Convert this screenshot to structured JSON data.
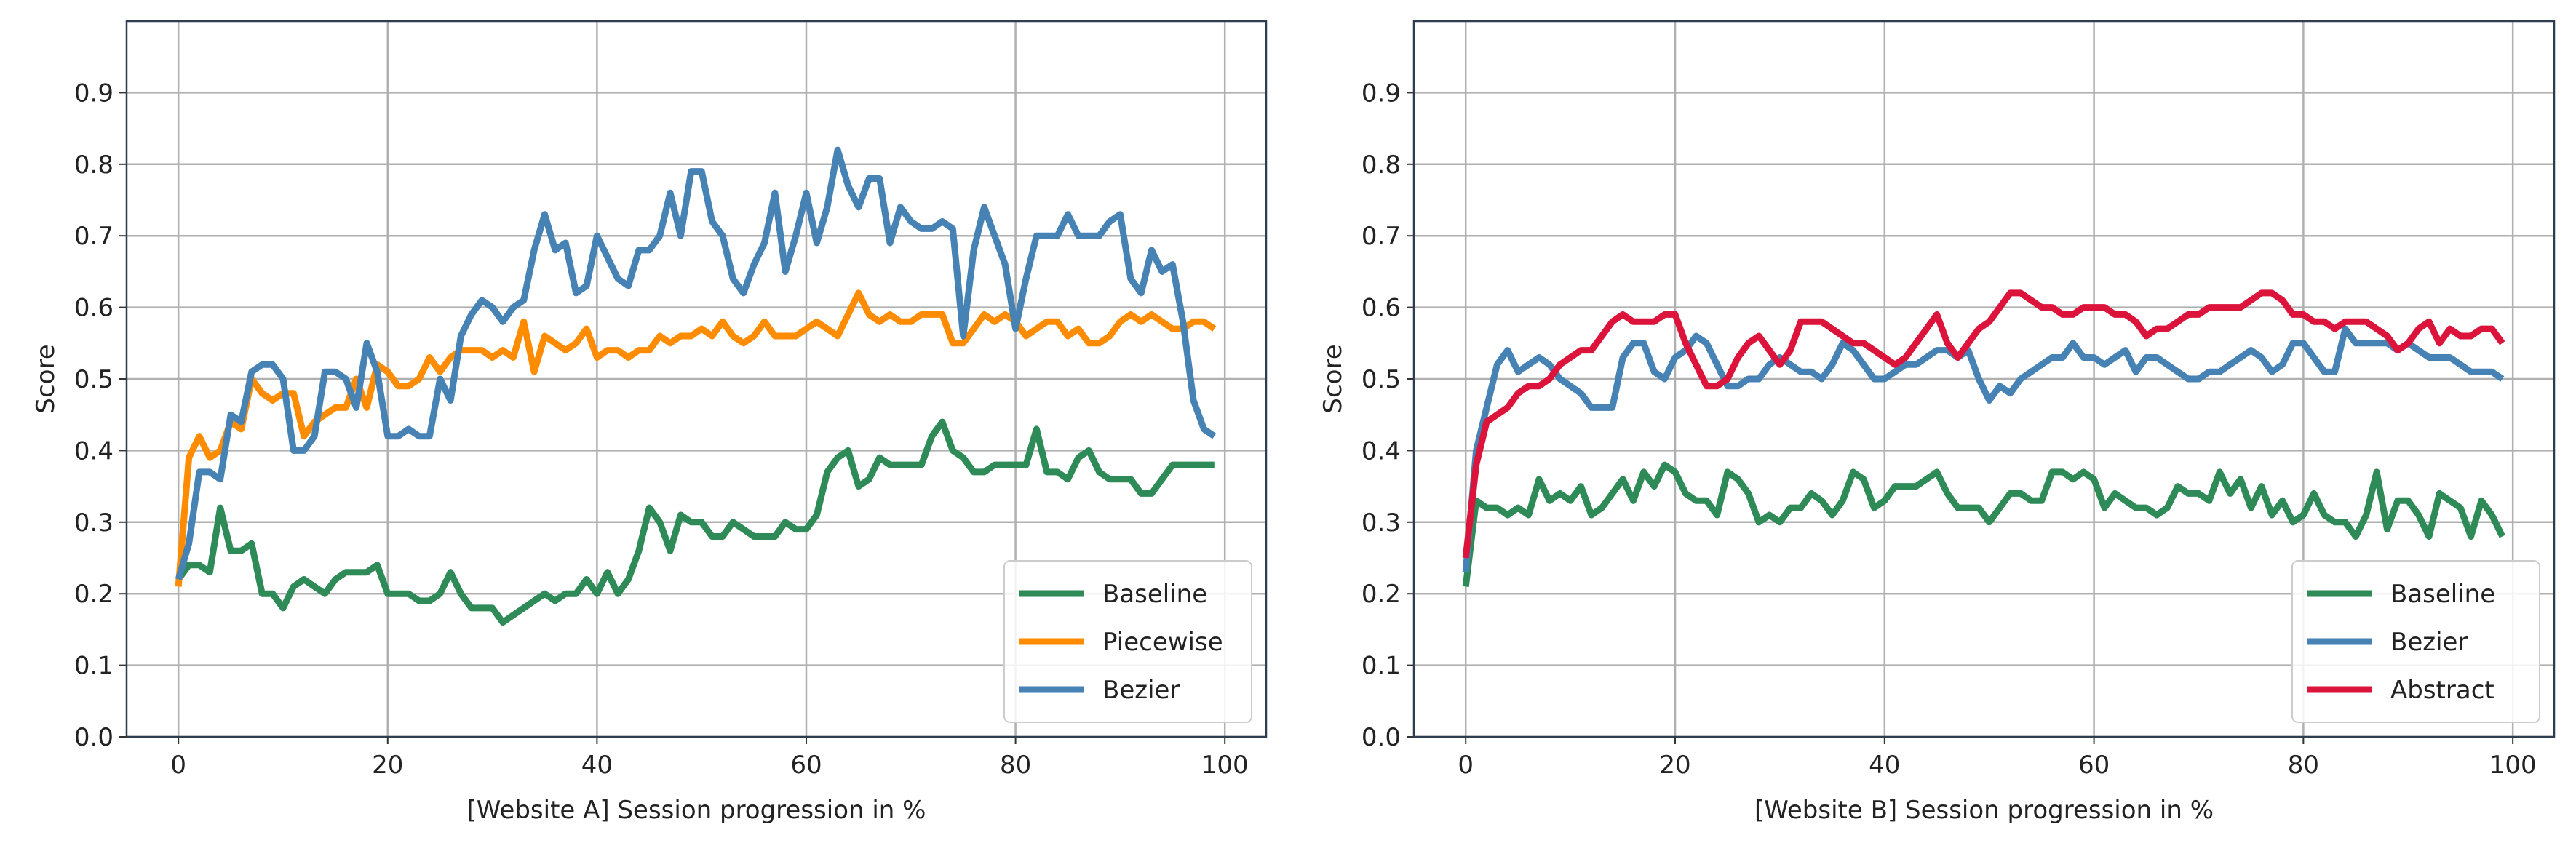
{
  "chart_data": [
    {
      "type": "line",
      "xlabel": "[Website A] Session progression in %",
      "ylabel": "Score",
      "xlim": [
        -4.95,
        103.95
      ],
      "ylim": [
        0,
        1
      ],
      "xticks": [
        0,
        20,
        40,
        60,
        80,
        100
      ],
      "yticks": [
        {
          "value": 0,
          "label": "0.0"
        },
        0.1,
        0.2,
        0.3,
        0.4,
        0.5,
        0.6,
        0.7,
        0.8,
        0.9
      ],
      "grid": true,
      "legend": "lower right",
      "x": [
        0,
        1,
        2,
        3,
        4,
        5,
        6,
        7,
        8,
        9,
        10,
        11,
        12,
        13,
        14,
        15,
        16,
        17,
        18,
        19,
        20,
        21,
        22,
        23,
        24,
        25,
        26,
        27,
        28,
        29,
        30,
        31,
        32,
        33,
        34,
        35,
        36,
        37,
        38,
        39,
        40,
        41,
        42,
        43,
        44,
        45,
        46,
        47,
        48,
        49,
        50,
        51,
        52,
        53,
        54,
        55,
        56,
        57,
        58,
        59,
        60,
        61,
        62,
        63,
        64,
        65,
        66,
        67,
        68,
        69,
        70,
        71,
        72,
        73,
        74,
        75,
        76,
        77,
        78,
        79,
        80,
        81,
        82,
        83,
        84,
        85,
        86,
        87,
        88,
        89,
        90,
        91,
        92,
        93,
        94,
        95,
        96,
        97,
        98,
        99
      ],
      "series": [
        {
          "name": "Baseline",
          "color": "#2e8b57",
          "values": [
            0.22,
            0.24,
            0.24,
            0.23,
            0.32,
            0.26,
            0.26,
            0.27,
            0.2,
            0.2,
            0.18,
            0.21,
            0.22,
            0.21,
            0.2,
            0.22,
            0.23,
            0.23,
            0.23,
            0.24,
            0.2,
            0.2,
            0.2,
            0.19,
            0.19,
            0.2,
            0.23,
            0.2,
            0.18,
            0.18,
            0.18,
            0.16,
            0.17,
            0.18,
            0.19,
            0.2,
            0.19,
            0.2,
            0.2,
            0.22,
            0.2,
            0.23,
            0.2,
            0.22,
            0.26,
            0.32,
            0.3,
            0.26,
            0.31,
            0.3,
            0.3,
            0.28,
            0.28,
            0.3,
            0.29,
            0.28,
            0.28,
            0.28,
            0.3,
            0.29,
            0.29,
            0.31,
            0.37,
            0.39,
            0.4,
            0.35,
            0.36,
            0.39,
            0.38,
            0.38,
            0.38,
            0.38,
            0.42,
            0.44,
            0.4,
            0.39,
            0.37,
            0.37,
            0.38,
            0.38,
            0.38,
            0.38,
            0.43,
            0.37,
            0.37,
            0.36,
            0.39,
            0.4,
            0.37,
            0.36,
            0.36,
            0.36,
            0.34,
            0.34,
            0.36,
            0.38,
            0.38,
            0.38,
            0.38,
            0.38
          ]
        },
        {
          "name": "Piecewise",
          "color": "#ff8c00",
          "values": [
            0.21,
            0.39,
            0.42,
            0.39,
            0.4,
            0.44,
            0.43,
            0.5,
            0.48,
            0.47,
            0.48,
            0.48,
            0.42,
            0.44,
            0.45,
            0.46,
            0.46,
            0.5,
            0.46,
            0.52,
            0.51,
            0.49,
            0.49,
            0.5,
            0.53,
            0.51,
            0.53,
            0.54,
            0.54,
            0.54,
            0.53,
            0.54,
            0.53,
            0.58,
            0.51,
            0.56,
            0.55,
            0.54,
            0.55,
            0.57,
            0.53,
            0.54,
            0.54,
            0.53,
            0.54,
            0.54,
            0.56,
            0.55,
            0.56,
            0.56,
            0.57,
            0.56,
            0.58,
            0.56,
            0.55,
            0.56,
            0.58,
            0.56,
            0.56,
            0.56,
            0.57,
            0.58,
            0.57,
            0.56,
            0.59,
            0.62,
            0.59,
            0.58,
            0.59,
            0.58,
            0.58,
            0.59,
            0.59,
            0.59,
            0.55,
            0.55,
            0.57,
            0.59,
            0.58,
            0.59,
            0.58,
            0.56,
            0.57,
            0.58,
            0.58,
            0.56,
            0.57,
            0.55,
            0.55,
            0.56,
            0.58,
            0.59,
            0.58,
            0.59,
            0.58,
            0.57,
            0.57,
            0.58,
            0.58,
            0.57
          ]
        },
        {
          "name": "Bezier",
          "color": "#4682b4",
          "values": [
            0.22,
            0.27,
            0.37,
            0.37,
            0.36,
            0.45,
            0.44,
            0.51,
            0.52,
            0.52,
            0.5,
            0.4,
            0.4,
            0.42,
            0.51,
            0.51,
            0.5,
            0.46,
            0.55,
            0.51,
            0.42,
            0.42,
            0.43,
            0.42,
            0.42,
            0.5,
            0.47,
            0.56,
            0.59,
            0.61,
            0.6,
            0.58,
            0.6,
            0.61,
            0.68,
            0.73,
            0.68,
            0.69,
            0.62,
            0.63,
            0.7,
            0.67,
            0.64,
            0.63,
            0.68,
            0.68,
            0.7,
            0.76,
            0.7,
            0.79,
            0.79,
            0.72,
            0.7,
            0.64,
            0.62,
            0.66,
            0.69,
            0.76,
            0.65,
            0.7,
            0.76,
            0.69,
            0.74,
            0.82,
            0.77,
            0.74,
            0.78,
            0.78,
            0.69,
            0.74,
            0.72,
            0.71,
            0.71,
            0.72,
            0.71,
            0.56,
            0.68,
            0.74,
            0.7,
            0.66,
            0.57,
            0.64,
            0.7,
            0.7,
            0.7,
            0.73,
            0.7,
            0.7,
            0.7,
            0.72,
            0.73,
            0.64,
            0.62,
            0.68,
            0.65,
            0.66,
            0.58,
            0.47,
            0.43,
            0.42
          ]
        }
      ]
    },
    {
      "type": "line",
      "xlabel": "[Website B] Session progression in %",
      "ylabel": "Score",
      "xlim": [
        -4.95,
        103.95
      ],
      "ylim": [
        0,
        1
      ],
      "xticks": [
        0,
        20,
        40,
        60,
        80,
        100
      ],
      "yticks": [
        {
          "value": 0,
          "label": "0.0"
        },
        0.1,
        0.2,
        0.3,
        0.4,
        0.5,
        0.6,
        0.7,
        0.8,
        0.9
      ],
      "grid": true,
      "legend": "lower right",
      "x": [
        0,
        1,
        2,
        3,
        4,
        5,
        6,
        7,
        8,
        9,
        10,
        11,
        12,
        13,
        14,
        15,
        16,
        17,
        18,
        19,
        20,
        21,
        22,
        23,
        24,
        25,
        26,
        27,
        28,
        29,
        30,
        31,
        32,
        33,
        34,
        35,
        36,
        37,
        38,
        39,
        40,
        41,
        42,
        43,
        44,
        45,
        46,
        47,
        48,
        49,
        50,
        51,
        52,
        53,
        54,
        55,
        56,
        57,
        58,
        59,
        60,
        61,
        62,
        63,
        64,
        65,
        66,
        67,
        68,
        69,
        70,
        71,
        72,
        73,
        74,
        75,
        76,
        77,
        78,
        79,
        80,
        81,
        82,
        83,
        84,
        85,
        86,
        87,
        88,
        89,
        90,
        91,
        92,
        93,
        94,
        95,
        96,
        97,
        98,
        99
      ],
      "series": [
        {
          "name": "Baseline",
          "color": "#2e8b57",
          "values": [
            0.21,
            0.33,
            0.32,
            0.32,
            0.31,
            0.32,
            0.31,
            0.36,
            0.33,
            0.34,
            0.33,
            0.35,
            0.31,
            0.32,
            0.34,
            0.36,
            0.33,
            0.37,
            0.35,
            0.38,
            0.37,
            0.34,
            0.33,
            0.33,
            0.31,
            0.37,
            0.36,
            0.34,
            0.3,
            0.31,
            0.3,
            0.32,
            0.32,
            0.34,
            0.33,
            0.31,
            0.33,
            0.37,
            0.36,
            0.32,
            0.33,
            0.35,
            0.35,
            0.35,
            0.36,
            0.37,
            0.34,
            0.32,
            0.32,
            0.32,
            0.3,
            0.32,
            0.34,
            0.34,
            0.33,
            0.33,
            0.37,
            0.37,
            0.36,
            0.37,
            0.36,
            0.32,
            0.34,
            0.33,
            0.32,
            0.32,
            0.31,
            0.32,
            0.35,
            0.34,
            0.34,
            0.33,
            0.37,
            0.34,
            0.36,
            0.32,
            0.35,
            0.31,
            0.33,
            0.3,
            0.31,
            0.34,
            0.31,
            0.3,
            0.3,
            0.28,
            0.31,
            0.37,
            0.29,
            0.33,
            0.33,
            0.31,
            0.28,
            0.34,
            0.33,
            0.32,
            0.28,
            0.33,
            0.31,
            0.28
          ]
        },
        {
          "name": "Bezier",
          "color": "#4682b4",
          "values": [
            0.23,
            0.4,
            0.46,
            0.52,
            0.54,
            0.51,
            0.52,
            0.53,
            0.52,
            0.5,
            0.49,
            0.48,
            0.46,
            0.46,
            0.46,
            0.53,
            0.55,
            0.55,
            0.51,
            0.5,
            0.53,
            0.54,
            0.56,
            0.55,
            0.52,
            0.49,
            0.49,
            0.5,
            0.5,
            0.52,
            0.53,
            0.52,
            0.51,
            0.51,
            0.5,
            0.52,
            0.55,
            0.54,
            0.52,
            0.5,
            0.5,
            0.51,
            0.52,
            0.52,
            0.53,
            0.54,
            0.54,
            0.53,
            0.54,
            0.5,
            0.47,
            0.49,
            0.48,
            0.5,
            0.51,
            0.52,
            0.53,
            0.53,
            0.55,
            0.53,
            0.53,
            0.52,
            0.53,
            0.54,
            0.51,
            0.53,
            0.53,
            0.52,
            0.51,
            0.5,
            0.5,
            0.51,
            0.51,
            0.52,
            0.53,
            0.54,
            0.53,
            0.51,
            0.52,
            0.55,
            0.55,
            0.53,
            0.51,
            0.51,
            0.57,
            0.55,
            0.55,
            0.55,
            0.55,
            0.54,
            0.55,
            0.54,
            0.53,
            0.53,
            0.53,
            0.52,
            0.51,
            0.51,
            0.51,
            0.5
          ]
        },
        {
          "name": "Abstract",
          "color": "#dc143c",
          "values": [
            0.25,
            0.38,
            0.44,
            0.45,
            0.46,
            0.48,
            0.49,
            0.49,
            0.5,
            0.52,
            0.53,
            0.54,
            0.54,
            0.56,
            0.58,
            0.59,
            0.58,
            0.58,
            0.58,
            0.59,
            0.59,
            0.55,
            0.52,
            0.49,
            0.49,
            0.5,
            0.53,
            0.55,
            0.56,
            0.54,
            0.52,
            0.54,
            0.58,
            0.58,
            0.58,
            0.57,
            0.56,
            0.55,
            0.55,
            0.54,
            0.53,
            0.52,
            0.53,
            0.55,
            0.57,
            0.59,
            0.55,
            0.53,
            0.55,
            0.57,
            0.58,
            0.6,
            0.62,
            0.62,
            0.61,
            0.6,
            0.6,
            0.59,
            0.59,
            0.6,
            0.6,
            0.6,
            0.59,
            0.59,
            0.58,
            0.56,
            0.57,
            0.57,
            0.58,
            0.59,
            0.59,
            0.6,
            0.6,
            0.6,
            0.6,
            0.61,
            0.62,
            0.62,
            0.61,
            0.59,
            0.59,
            0.58,
            0.58,
            0.57,
            0.58,
            0.58,
            0.58,
            0.57,
            0.56,
            0.54,
            0.55,
            0.57,
            0.58,
            0.55,
            0.57,
            0.56,
            0.56,
            0.57,
            0.57,
            0.55
          ]
        }
      ]
    }
  ]
}
